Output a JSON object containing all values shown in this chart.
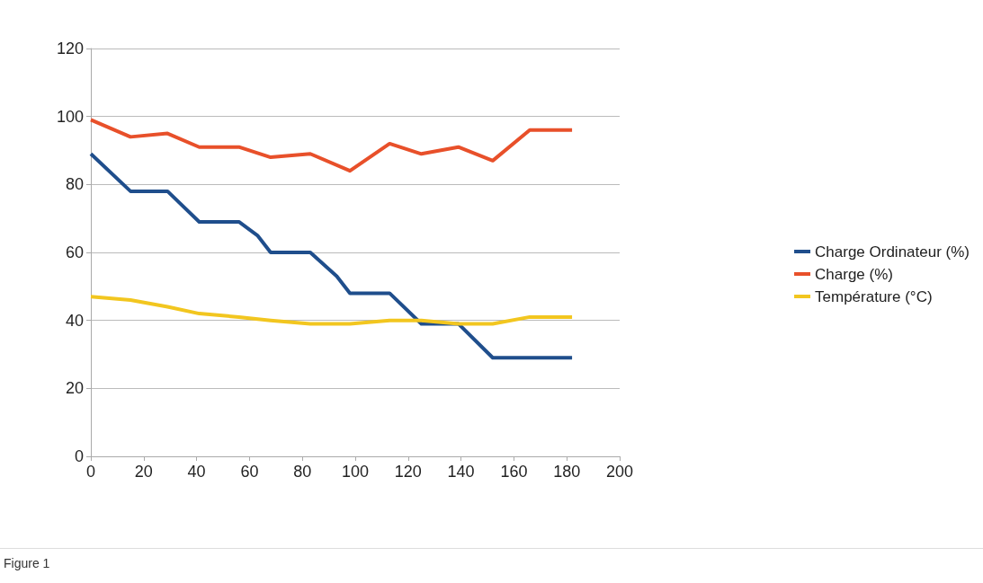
{
  "chart_data": {
    "type": "line",
    "xlim": [
      0,
      200
    ],
    "xticks": [
      0,
      20,
      40,
      60,
      80,
      100,
      120,
      140,
      160,
      180,
      200
    ],
    "ylim": [
      0,
      120
    ],
    "yticks": [
      0,
      20,
      40,
      60,
      80,
      100,
      120
    ],
    "grid": "y",
    "legend": "right",
    "marker": "none",
    "line_style": "solid",
    "annotations": [
      "Figure 1"
    ],
    "series": [
      {
        "name": "Charge Ordinateur (%)",
        "color": "#1f4e8c",
        "x": [
          0,
          15,
          29,
          41,
          56,
          63,
          68,
          83,
          93,
          98,
          113,
          125,
          139,
          152,
          182
        ],
        "values": [
          89,
          78,
          78,
          69,
          69,
          65,
          60,
          60,
          53,
          48,
          48,
          39,
          39,
          29,
          29
        ]
      },
      {
        "name": "Charge (%)",
        "color": "#e8502a",
        "x": [
          0,
          15,
          29,
          41,
          56,
          68,
          83,
          98,
          113,
          125,
          139,
          152,
          166,
          182
        ],
        "values": [
          99,
          94,
          95,
          91,
          91,
          88,
          89,
          84,
          92,
          89,
          91,
          87,
          96,
          96
        ]
      },
      {
        "name": "Température (°C)",
        "color": "#f2c61f",
        "x": [
          0,
          15,
          29,
          41,
          56,
          68,
          83,
          98,
          113,
          125,
          139,
          152,
          166,
          182
        ],
        "values": [
          47,
          46,
          44,
          42,
          41,
          40,
          39,
          39,
          40,
          40,
          39,
          39,
          41,
          41
        ]
      }
    ]
  }
}
